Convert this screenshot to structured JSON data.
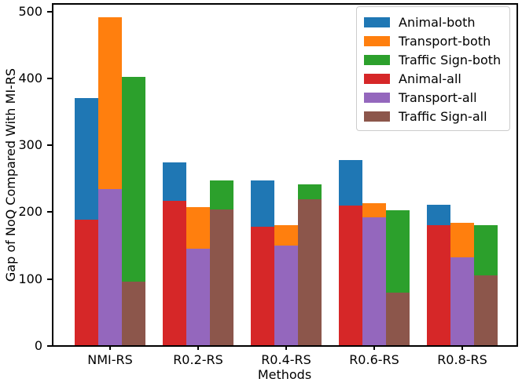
{
  "chart_data": {
    "type": "bar",
    "title": "",
    "xlabel": "Methods",
    "ylabel": "Gap of NoQ Compared With MI-RS",
    "ylim": [
      0,
      500
    ],
    "yticks": [
      0,
      100,
      200,
      300,
      400,
      500
    ],
    "categories": [
      "NMI-RS",
      "R0.2-RS",
      "R0.4-RS",
      "R0.6-RS",
      "R0.8-RS"
    ],
    "series": [
      {
        "name": "Animal-both",
        "color": "#1f77b4",
        "layer": "back",
        "slot": 0,
        "values": [
          370,
          274,
          247,
          278,
          211
        ]
      },
      {
        "name": "Transport-both",
        "color": "#ff7f0e",
        "layer": "back",
        "slot": 1,
        "values": [
          491,
          208,
          180,
          213,
          184
        ]
      },
      {
        "name": "Traffic Sign-both",
        "color": "#2ca02c",
        "layer": "back",
        "slot": 2,
        "values": [
          402,
          247,
          242,
          203,
          180
        ]
      },
      {
        "name": "Animal-all",
        "color": "#d62728",
        "layer": "front",
        "slot": 0,
        "values": [
          189,
          217,
          178,
          210,
          181
        ]
      },
      {
        "name": "Transport-all",
        "color": "#9467bd",
        "layer": "front",
        "slot": 1,
        "values": [
          234,
          145,
          150,
          192,
          132
        ]
      },
      {
        "name": "Traffic Sign-all",
        "color": "#8c564b",
        "layer": "front",
        "slot": 2,
        "values": [
          96,
          204,
          219,
          80,
          106
        ]
      }
    ],
    "legend": {
      "position": "upper right",
      "entries": [
        "Animal-both",
        "Transport-both",
        "Traffic Sign-both",
        "Animal-all",
        "Transport-all",
        "Traffic Sign-all"
      ]
    },
    "grid": false
  }
}
